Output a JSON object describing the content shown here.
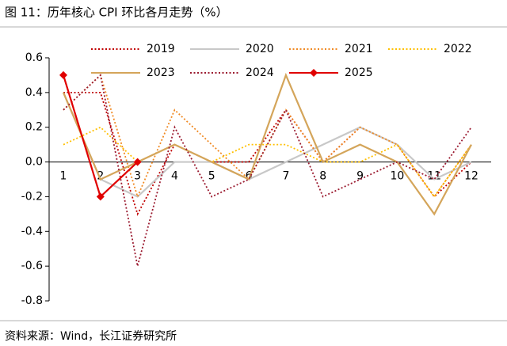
{
  "chart_data": {
    "type": "line",
    "title": "图 11：历年核心 CPI 环比各月走势（%）",
    "source": "资料来源：Wind，长江证券研究所",
    "categories": [
      "1",
      "2",
      "3",
      "4",
      "5",
      "6",
      "7",
      "8",
      "9",
      "10",
      "11",
      "12"
    ],
    "ylim": [
      -0.8,
      0.6
    ],
    "yticks": [
      0.6,
      0.4,
      0.2,
      {
        "value": 0,
        "label": "0.0"
      },
      -0.2,
      -0.4,
      -0.6,
      -0.8
    ],
    "series": [
      {
        "name": "2019",
        "color": "#c00000",
        "style": "dotted",
        "values": [
          0.4,
          0.4,
          -0.3,
          0.1,
          0.0,
          0.0,
          0.3,
          0.0,
          0.2,
          0.1,
          -0.2,
          0.0
        ]
      },
      {
        "name": "2020",
        "color": "#c8c8c8",
        "style": "solid",
        "values": [
          0.4,
          -0.1,
          -0.2,
          0.0,
          0.0,
          -0.1,
          0.0,
          0.1,
          0.2,
          0.1,
          -0.1,
          0.0
        ]
      },
      {
        "name": "2021",
        "color": "#f08a24",
        "style": "dotted",
        "values": [
          0.3,
          0.5,
          -0.2,
          0.3,
          0.1,
          -0.1,
          0.3,
          0.0,
          0.2,
          0.1,
          -0.2,
          0.1
        ]
      },
      {
        "name": "2022",
        "color": "#ffc000",
        "style": "dotted",
        "values": [
          0.1,
          0.2,
          0.0,
          0.1,
          0.0,
          0.1,
          0.1,
          0.0,
          0.0,
          0.1,
          -0.2,
          0.1
        ]
      },
      {
        "name": "2023",
        "color": "#d4a55a",
        "style": "solid",
        "values": [
          0.4,
          -0.1,
          0.0,
          0.1,
          0.0,
          -0.1,
          0.5,
          0.0,
          0.1,
          0.0,
          -0.3,
          0.1
        ]
      },
      {
        "name": "2024",
        "color": "#9b1b30",
        "style": "dotted",
        "values": [
          0.3,
          0.5,
          -0.6,
          0.2,
          -0.2,
          -0.1,
          0.3,
          -0.2,
          -0.1,
          0.0,
          -0.1,
          0.2
        ]
      },
      {
        "name": "2025",
        "color": "#e00000",
        "style": "solid",
        "marker": "diamond",
        "values": [
          0.5,
          -0.2,
          0.0,
          null,
          null,
          null,
          null,
          null,
          null,
          null,
          null,
          null
        ]
      }
    ]
  }
}
